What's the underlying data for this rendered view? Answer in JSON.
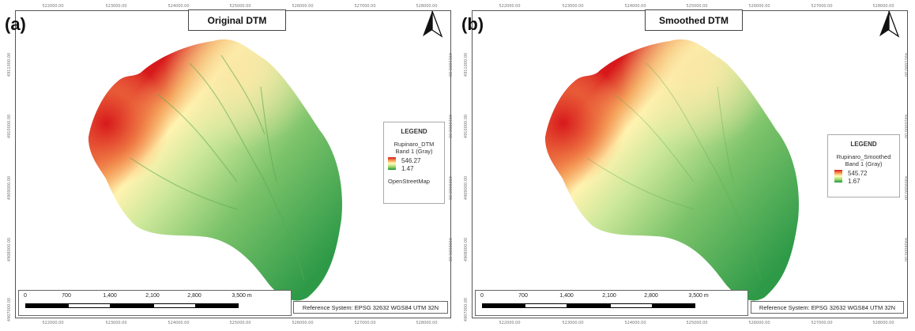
{
  "defs": {
    "north_arrow_icon": "north-arrow-icon",
    "ramp_colors": [
      "#d7191c",
      "#fdae61",
      "#ffffbf",
      "#a6d96a",
      "#1a9641"
    ]
  },
  "coords": {
    "top": [
      "522000.00",
      "523000.00",
      "524000.00",
      "525000.00",
      "526000.00",
      "527000.00",
      "528000.00"
    ],
    "bottom": [
      "522000.00",
      "523000.00",
      "524000.00",
      "525000.00",
      "526000.00",
      "527000.00",
      "528000.00"
    ],
    "left": [
      "4911000.00",
      "4910000.00",
      "4909000.00",
      "4908000.00",
      "4907000.00"
    ],
    "right": [
      "4911000.00",
      "4910000.00",
      "4909000.00",
      "4908000.00",
      "4907000.00"
    ]
  },
  "panels": [
    {
      "label": "(a)",
      "title": "Original DTM",
      "legend": {
        "title": "LEGEND",
        "layer": "Rupinaro_DTM",
        "band": "Band 1 (Gray)",
        "max": "546.27",
        "min": "1.47",
        "extra": "OpenStreetMap"
      },
      "scale": {
        "labels": [
          "0",
          "700",
          "1,400",
          "2,100",
          "2,800",
          "3,500 m"
        ]
      },
      "reference": "Reference System: EPSG 32632 WGS84 UTM 32N"
    },
    {
      "label": "(b)",
      "title": "Smoothed DTM",
      "legend": {
        "title": "LEGEND",
        "layer": "Rupinaro_Smoothed",
        "band": "Band 1 (Gray)",
        "max": "545.72",
        "min": "1.67"
      },
      "scale": {
        "labels": [
          "0",
          "700",
          "1,400",
          "2,100",
          "2,800",
          "3,500 m"
        ]
      },
      "reference": "Reference System: EPSG 32632 WGS84 UTM 32N"
    }
  ]
}
